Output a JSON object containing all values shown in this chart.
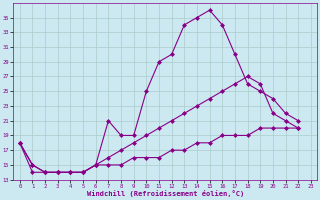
{
  "xlabel": "Windchill (Refroidissement éolien,°C)",
  "background_color": "#cce8f0",
  "grid_color": "#aacccc",
  "line_color": "#880088",
  "xlim": [
    -0.5,
    23.5
  ],
  "ylim": [
    13,
    37
  ],
  "yticks": [
    13,
    15,
    17,
    19,
    21,
    23,
    25,
    27,
    29,
    31,
    33,
    35
  ],
  "xticks": [
    0,
    1,
    2,
    3,
    4,
    5,
    6,
    7,
    8,
    9,
    10,
    11,
    12,
    13,
    14,
    15,
    16,
    17,
    18,
    19,
    20,
    21,
    22,
    23
  ],
  "series": [
    {
      "x": [
        0,
        1,
        2,
        3,
        4,
        5,
        6,
        7,
        8,
        9,
        10,
        11,
        12,
        13,
        14,
        15,
        16,
        17,
        18,
        19,
        20,
        21,
        22
      ],
      "y": [
        18,
        15,
        14,
        14,
        14,
        14,
        15,
        21,
        19,
        19,
        25,
        29,
        30,
        34,
        35,
        36,
        34,
        30,
        26,
        25,
        24,
        22,
        21
      ]
    },
    {
      "x": [
        0,
        1,
        2,
        3,
        4,
        5,
        6,
        7,
        8,
        9,
        10,
        11,
        12,
        13,
        14,
        15,
        16,
        17,
        18,
        19,
        20,
        21,
        22
      ],
      "y": [
        18,
        15,
        14,
        14,
        14,
        14,
        15,
        16,
        17,
        18,
        19,
        20,
        21,
        22,
        23,
        24,
        25,
        26,
        27,
        26,
        22,
        21,
        20
      ]
    },
    {
      "x": [
        0,
        1,
        2,
        3,
        4,
        5,
        6,
        7,
        8,
        9,
        10,
        11,
        12,
        13,
        14,
        15,
        16,
        17,
        18,
        19,
        20,
        21,
        22
      ],
      "y": [
        18,
        14,
        14,
        14,
        14,
        14,
        15,
        15,
        15,
        16,
        16,
        16,
        17,
        17,
        18,
        18,
        19,
        19,
        19,
        20,
        20,
        20,
        20
      ]
    }
  ]
}
